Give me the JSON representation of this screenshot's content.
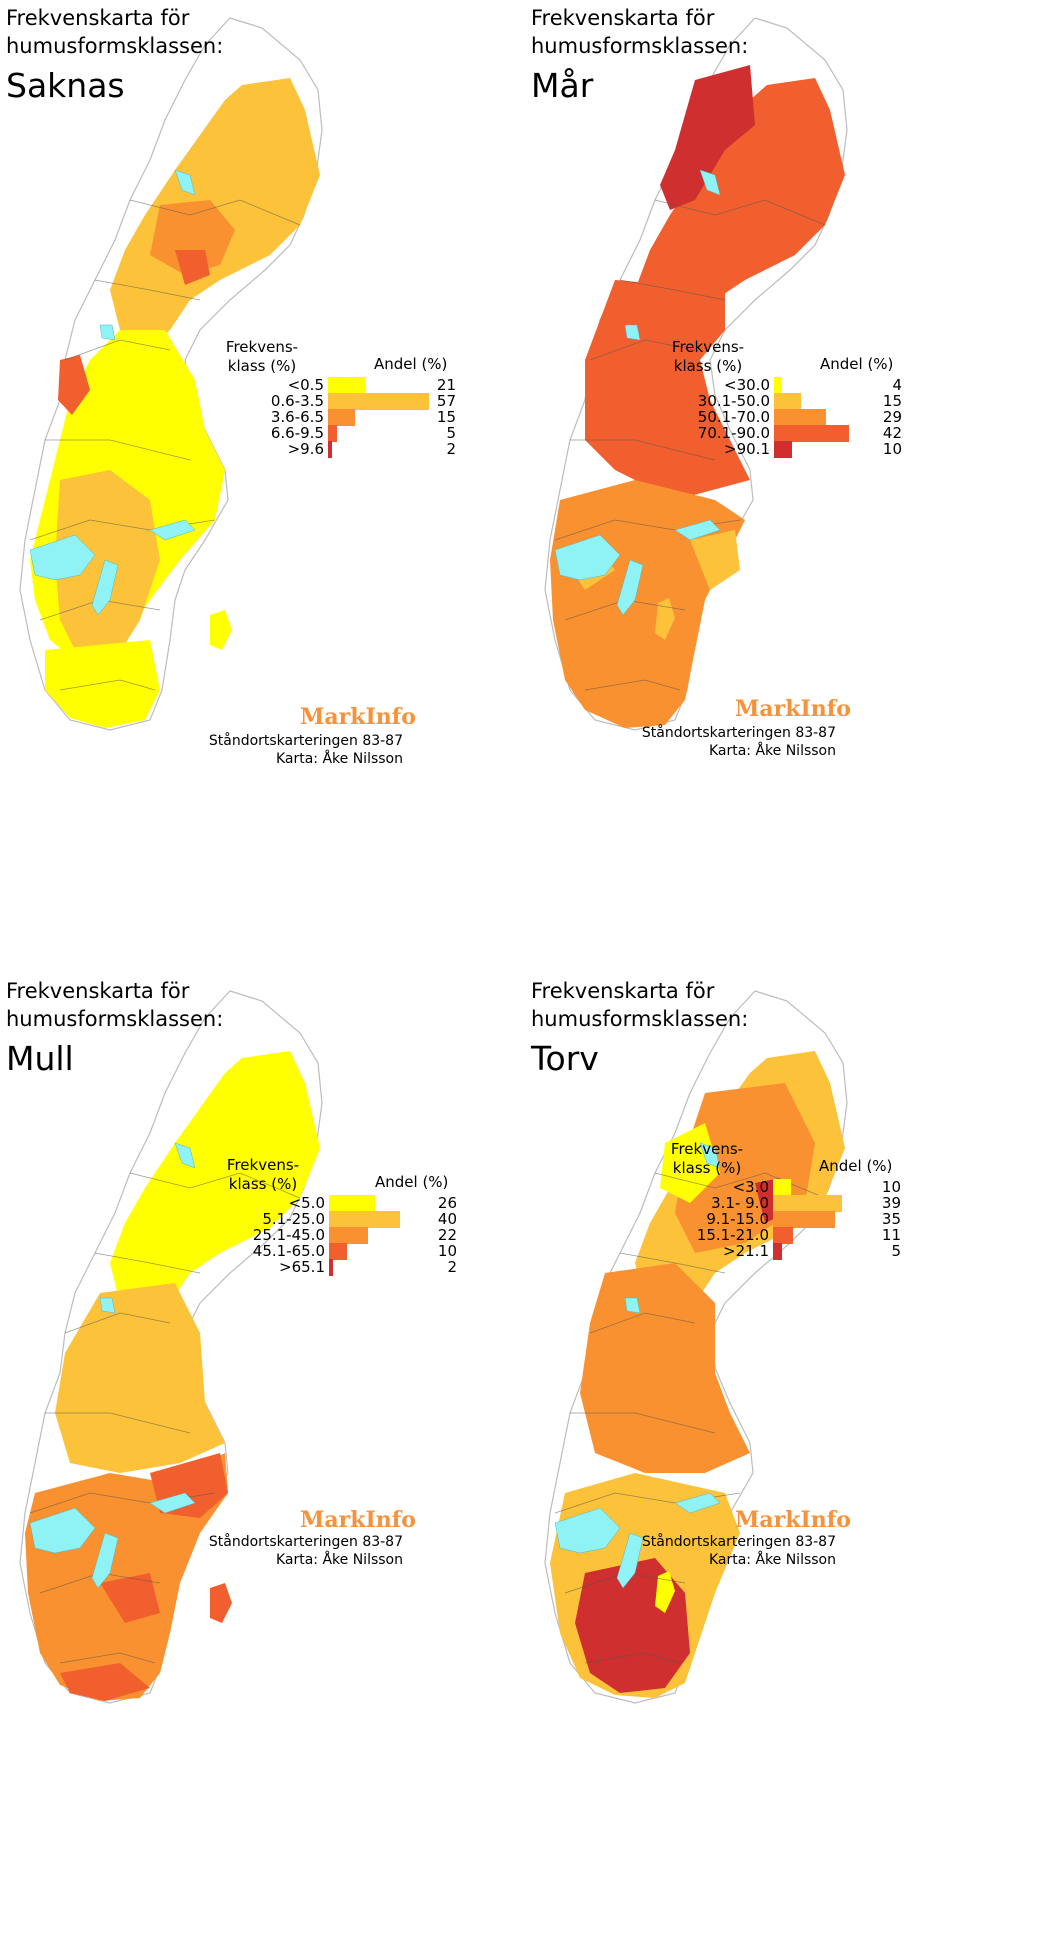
{
  "colors": {
    "c1": "#ffff00",
    "c2": "#fbc23a",
    "c3": "#f99131",
    "c4": "#f15f2e",
    "c5": "#cf2f2e",
    "lake": "#8ff2f5",
    "border": "#bcbcbc",
    "county": "#555555",
    "brand": "#f7923a"
  },
  "panels": [
    {
      "title_line1": "Frekvenskarta för",
      "title_line2": "humusformsklassen:",
      "class_name": "Saknas",
      "legend_head_left_1": "Frekvens-",
      "legend_head_left_2": "klass (%)",
      "legend_head_right": "Andel (%)",
      "rows": [
        {
          "label": "<0.5",
          "value": "21",
          "share": 21
        },
        {
          "label": "0.6-3.5",
          "value": "57",
          "share": 57
        },
        {
          "label": "3.6-6.5",
          "value": "15",
          "share": 15
        },
        {
          "label": "6.6-9.5",
          "value": "5",
          "share": 5
        },
        {
          "label": ">9.6",
          "value": "2",
          "share": 2
        }
      ],
      "map_palette": [
        "c2",
        "c1",
        "c3",
        "c4"
      ],
      "brand": "MarkInfo",
      "credit1": "Ståndortskarteringen 83-87",
      "credit2": "Karta: Åke Nilsson"
    },
    {
      "title_line1": "Frekvenskarta för",
      "title_line2": "humusformsklassen:",
      "class_name": "Mår",
      "legend_head_left_1": "Frekvens-",
      "legend_head_left_2": "klass (%)",
      "legend_head_right": "Andel (%)",
      "rows": [
        {
          "label": "<30.0",
          "value": "4",
          "share": 4
        },
        {
          "label": "30.1-50.0",
          "value": "15",
          "share": 15
        },
        {
          "label": "50.1-70.0",
          "value": "29",
          "share": 29
        },
        {
          "label": "70.1-90.0",
          "value": "42",
          "share": 42
        },
        {
          "label": ">90.1",
          "value": "10",
          "share": 10
        }
      ],
      "map_palette": [
        "c4",
        "c5",
        "c3",
        "c2"
      ],
      "brand": "MarkInfo",
      "credit1": "Ståndortskarteringen 83-87",
      "credit2": "Karta: Åke Nilsson"
    },
    {
      "title_line1": "Frekvenskarta för",
      "title_line2": "humusformsklassen:",
      "class_name": "Mull",
      "legend_head_left_1": "Frekvens-",
      "legend_head_left_2": "klass (%)",
      "legend_head_right": "Andel (%)",
      "rows": [
        {
          "label": "<5.0",
          "value": "26",
          "share": 26
        },
        {
          "label": "5.1-25.0",
          "value": "40",
          "share": 40
        },
        {
          "label": "25.1-45.0",
          "value": "22",
          "share": 22
        },
        {
          "label": "45.1-65.0",
          "value": "10",
          "share": 10
        },
        {
          "label": ">65.1",
          "value": "2",
          "share": 2
        }
      ],
      "map_palette": [
        "c1",
        "c2",
        "c3",
        "c4"
      ],
      "brand": "MarkInfo",
      "credit1": "Ståndortskarteringen 83-87",
      "credit2": "Karta: Åke Nilsson"
    },
    {
      "title_line1": "Frekvenskarta för",
      "title_line2": "humusformsklassen:",
      "class_name": "Torv",
      "legend_head_left_1": "Frekvens-",
      "legend_head_left_2": "klass (%)",
      "legend_head_right": "Andel (%)",
      "rows": [
        {
          "label": "<3.0",
          "value": "10",
          "share": 10
        },
        {
          "label": "3.1-  9.0",
          "value": "39",
          "share": 39
        },
        {
          "label": "9.1-15.0",
          "value": "35",
          "share": 35
        },
        {
          "label": "15.1-21.0",
          "value": "11",
          "share": 11
        },
        {
          "label": ">21.1",
          "value": "5",
          "share": 5
        }
      ],
      "map_palette": [
        "c2",
        "c3",
        "c1",
        "c5"
      ],
      "brand": "MarkInfo",
      "credit1": "Ståndortskarteringen 83-87",
      "credit2": "Karta: Åke Nilsson"
    }
  ]
}
